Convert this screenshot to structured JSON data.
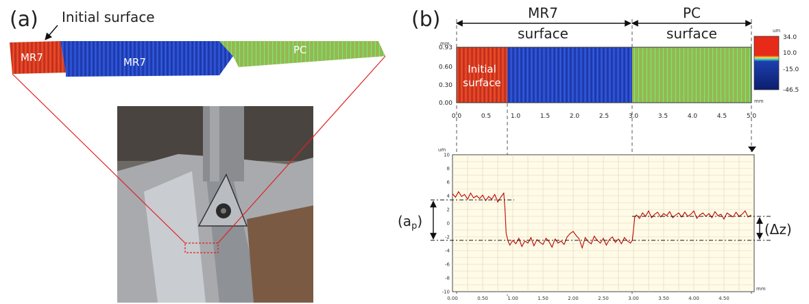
{
  "panel_a": {
    "label": "(a)",
    "callout": "Initial surface",
    "strip_labels": {
      "initial": "MR7",
      "mr7": "MR7",
      "pc": "PC"
    }
  },
  "panel_b": {
    "label": "(b)",
    "regions": [
      {
        "line1": "MR7",
        "line2": "surface"
      },
      {
        "line1": "PC",
        "line2": "surface"
      }
    ],
    "map": {
      "initial_label_1": "Initial",
      "initial_label_2": "surface",
      "y_unit": "mm",
      "x_unit": "mm",
      "y_ticks": [
        "0.93",
        "0.60",
        "0.30",
        "0.00"
      ],
      "x_ticks": [
        "0.0",
        "0.5",
        "1.0",
        "1.5",
        "2.0",
        "2.5",
        "3.0",
        "3.5",
        "4.0",
        "4.5",
        "5.0"
      ],
      "colorbar_unit": "um",
      "colorbar_ticks": [
        "34.0",
        "10.0",
        "-15.0",
        "-46.5"
      ],
      "colors": {
        "initial": "#e8341f",
        "mr7": "#1f3fbf",
        "pc": "#8fca5a"
      }
    },
    "annotations": {
      "ap_main": "(a",
      "ap_sub": "p",
      "ap_close": ")",
      "dz": "(Δz)"
    }
  },
  "chart_data": {
    "type": "line",
    "title": "",
    "xlabel": "mm",
    "ylabel": "um",
    "xlim": [
      0,
      5
    ],
    "ylim": [
      -10,
      10
    ],
    "x_ticks": [
      "0.00",
      "0.50",
      "1.00",
      "1.50",
      "2.00",
      "2.50",
      "3.00",
      "3.50",
      "4.00",
      "4.50"
    ],
    "y_ticks": [
      "10",
      "8",
      "6",
      "4",
      "2",
      "0",
      "-2",
      "-4",
      "-6",
      "-8",
      "-10"
    ],
    "grid": true,
    "series": [
      {
        "color": "#c00000",
        "x": [
          0.0,
          0.05,
          0.1,
          0.15,
          0.2,
          0.25,
          0.3,
          0.35,
          0.4,
          0.45,
          0.5,
          0.55,
          0.6,
          0.65,
          0.7,
          0.75,
          0.8,
          0.85,
          0.87,
          0.89,
          0.92,
          0.95,
          1.0,
          1.05,
          1.1,
          1.15,
          1.2,
          1.25,
          1.3,
          1.35,
          1.4,
          1.45,
          1.5,
          1.55,
          1.6,
          1.65,
          1.7,
          1.75,
          1.8,
          1.85,
          1.9,
          1.95,
          2.0,
          2.05,
          2.1,
          2.15,
          2.2,
          2.25,
          2.3,
          2.35,
          2.4,
          2.45,
          2.5,
          2.55,
          2.6,
          2.65,
          2.7,
          2.75,
          2.8,
          2.85,
          2.9,
          2.95,
          2.98,
          3.0,
          3.02,
          3.05,
          3.1,
          3.15,
          3.2,
          3.25,
          3.3,
          3.35,
          3.4,
          3.45,
          3.5,
          3.55,
          3.6,
          3.65,
          3.7,
          3.75,
          3.8,
          3.85,
          3.9,
          3.95,
          4.0,
          4.05,
          4.1,
          4.15,
          4.2,
          4.25,
          4.3,
          4.35,
          4.4,
          4.45,
          4.5,
          4.55,
          4.6,
          4.65,
          4.7,
          4.75,
          4.8,
          4.85,
          4.9,
          4.95
        ],
        "y": [
          4.3,
          3.8,
          4.6,
          3.9,
          4.2,
          3.5,
          4.4,
          3.7,
          4.0,
          3.6,
          4.1,
          3.3,
          3.9,
          3.5,
          4.2,
          3.1,
          3.8,
          4.4,
          2.0,
          -1.5,
          -2.6,
          -3.2,
          -2.5,
          -3.0,
          -2.2,
          -3.4,
          -2.6,
          -2.9,
          -2.1,
          -3.3,
          -2.4,
          -2.8,
          -3.1,
          -2.2,
          -2.7,
          -3.5,
          -2.3,
          -2.9,
          -2.6,
          -3.1,
          -2.0,
          -1.5,
          -1.2,
          -1.8,
          -2.3,
          -3.6,
          -2.1,
          -2.7,
          -3.0,
          -1.9,
          -2.5,
          -2.9,
          -2.2,
          -3.2,
          -2.4,
          -2.0,
          -2.8,
          -2.3,
          -3.0,
          -2.1,
          -2.6,
          -2.9,
          -2.5,
          -1.0,
          0.9,
          1.2,
          0.7,
          1.5,
          1.0,
          1.8,
          0.8,
          1.3,
          1.6,
          0.9,
          1.4,
          1.1,
          1.7,
          0.8,
          1.2,
          1.5,
          0.9,
          1.6,
          1.0,
          1.3,
          1.8,
          0.7,
          1.2,
          1.5,
          1.0,
          1.4,
          0.8,
          1.7,
          1.1,
          1.3,
          0.6,
          1.5,
          1.2,
          0.9,
          1.6,
          1.0,
          1.3,
          1.8,
          0.9,
          1.2
        ]
      }
    ]
  }
}
